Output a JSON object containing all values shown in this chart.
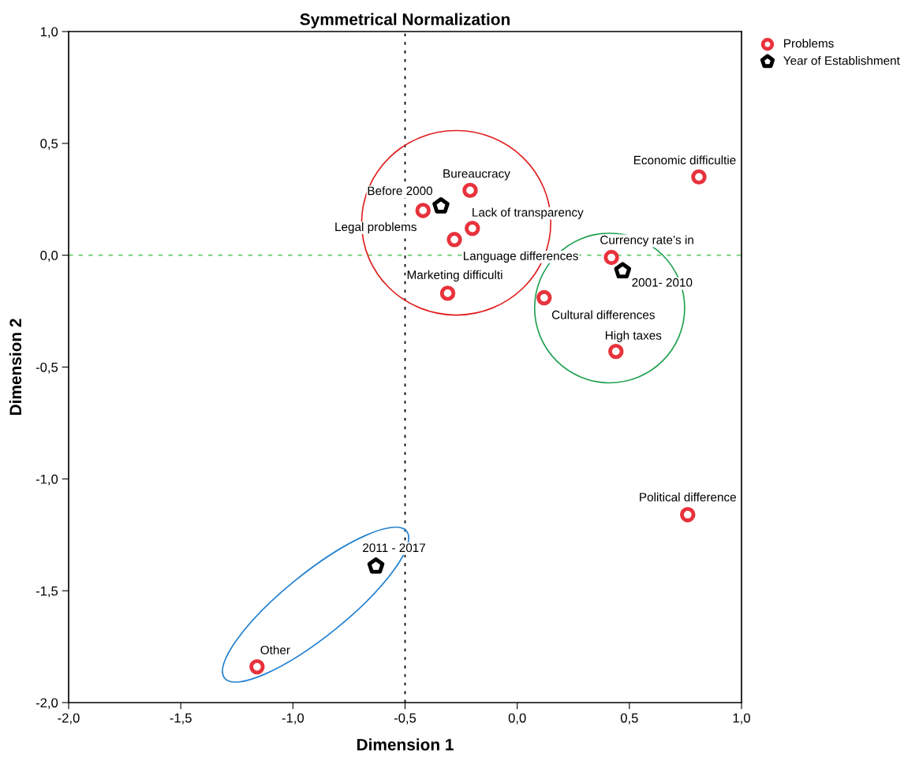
{
  "chart_data": {
    "type": "scatter",
    "title": "Symmetrical Normalization",
    "xlabel": "Dimension 1",
    "ylabel": "Dimension 2",
    "xlim": [
      -2,
      1
    ],
    "ylim": [
      -2,
      1
    ],
    "xticks": [
      {
        "value": -2,
        "label": "-2,0"
      },
      {
        "value": -1.5,
        "label": "-1,5"
      },
      {
        "value": -1,
        "label": "-1,0"
      },
      {
        "value": -0.5,
        "label": "-0,5"
      },
      {
        "value": 0,
        "label": "0,0"
      },
      {
        "value": 0.5,
        "label": "0,5"
      },
      {
        "value": 1,
        "label": "1,0"
      }
    ],
    "yticks": [
      {
        "value": -2,
        "label": "-2,0"
      },
      {
        "value": -1.5,
        "label": "-1,5"
      },
      {
        "value": -1,
        "label": "-1,0"
      },
      {
        "value": -0.5,
        "label": "-0,5"
      },
      {
        "value": 0,
        "label": "0,0"
      },
      {
        "value": 0.5,
        "label": "0,5"
      },
      {
        "value": 1,
        "label": "1,0"
      }
    ],
    "grid": false,
    "legend": "top right",
    "series": [
      {
        "name": "Problems",
        "color": "#e8323c",
        "marker": "circle",
        "x": [
          -0.21,
          -0.2,
          -0.42,
          -0.28,
          -0.31,
          0.81,
          0.42,
          0.12,
          0.44,
          0.76,
          -1.16
        ],
        "values": [
          0.29,
          0.12,
          0.2,
          0.07,
          -0.17,
          0.35,
          -0.01,
          -0.19,
          -0.43,
          -1.16,
          -1.84
        ]
      },
      {
        "name": "Year of Establishment",
        "color": "#000000",
        "x": [
          -0.34,
          0.47,
          -0.63
        ],
        "values": [
          0.22,
          -0.07,
          -1.39
        ]
      }
    ],
    "ref_lines": [
      {
        "axis": "x",
        "value": -0.5,
        "color": "#000000",
        "line_style": "dotted"
      },
      {
        "axis": "y",
        "value": 0,
        "color": "#66cc66",
        "line_style": "dashed"
      }
    ],
    "annotations": [
      {
        "text": "Bureaucracy",
        "x": -0.21,
        "y": 0.29
      },
      {
        "text": "Lack of transparency",
        "x": -0.2,
        "y": 0.12
      },
      {
        "text": "Legal problems",
        "x": -0.42,
        "y": 0.2
      },
      {
        "text": "Language differences",
        "x": -0.28,
        "y": 0.07
      },
      {
        "text": "Marketing difficulti",
        "x": -0.31,
        "y": -0.17
      },
      {
        "text": "Economic difficultie",
        "x": 0.81,
        "y": 0.35
      },
      {
        "text": "Currency rate’s in",
        "x": 0.42,
        "y": -0.01
      },
      {
        "text": "Cultural differences",
        "x": 0.12,
        "y": -0.19
      },
      {
        "text": "High taxes",
        "x": 0.44,
        "y": -0.43
      },
      {
        "text": "Political difference",
        "x": 0.76,
        "y": -1.16
      },
      {
        "text": "Other",
        "x": -1.16,
        "y": -1.84
      },
      {
        "text": "Before 2000",
        "x": -0.34,
        "y": 0.22
      },
      {
        "text": "2001- 2010",
        "x": 0.47,
        "y": -0.07
      },
      {
        "text": "2011 - 2017",
        "x": -0.63,
        "y": -1.39
      }
    ]
  }
}
